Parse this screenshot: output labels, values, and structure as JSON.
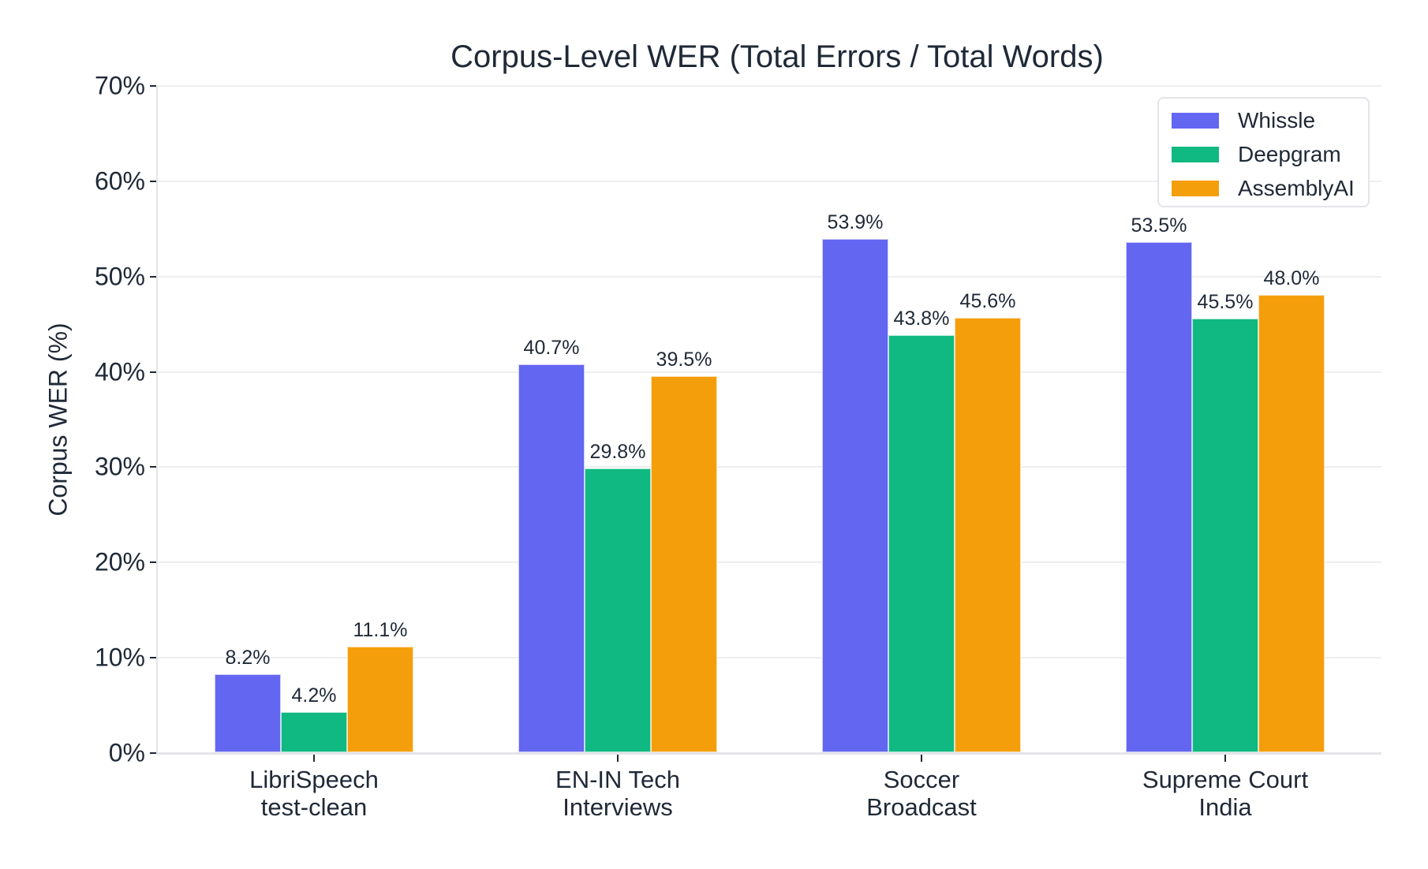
{
  "chart_data": {
    "type": "bar",
    "title": "Corpus-Level WER (Total Errors / Total Words)",
    "xlabel": "",
    "ylabel": "Corpus WER (%)",
    "ylim": [
      0,
      70
    ],
    "yticks": [
      "0%",
      "10%",
      "20%",
      "30%",
      "40%",
      "50%",
      "60%",
      "70%"
    ],
    "grid": true,
    "legend_position": "upper right",
    "categories": [
      "LibriSpeech\ntest-clean",
      "EN-IN Tech\nInterviews",
      "Soccer\nBroadcast",
      "Supreme Court\nIndia"
    ],
    "category_lines": [
      [
        "LibriSpeech",
        "test-clean"
      ],
      [
        "EN-IN Tech",
        "Interviews"
      ],
      [
        "Soccer",
        "Broadcast"
      ],
      [
        "Supreme Court",
        "India"
      ]
    ],
    "series": [
      {
        "name": "Whissle",
        "color": "#6366f1",
        "values": [
          8.2,
          40.7,
          53.9,
          53.5
        ],
        "labels": [
          "8.2%",
          "40.7%",
          "53.9%",
          "53.5%"
        ]
      },
      {
        "name": "Deepgram",
        "color": "#10b981",
        "values": [
          4.2,
          29.8,
          43.8,
          45.5
        ],
        "labels": [
          "4.2%",
          "29.8%",
          "43.8%",
          "45.5%"
        ]
      },
      {
        "name": "AssemblyAI",
        "color": "#f59e0b",
        "values": [
          11.1,
          39.5,
          45.6,
          48.0
        ],
        "labels": [
          "11.1%",
          "39.5%",
          "45.6%",
          "48.0%"
        ]
      }
    ]
  }
}
